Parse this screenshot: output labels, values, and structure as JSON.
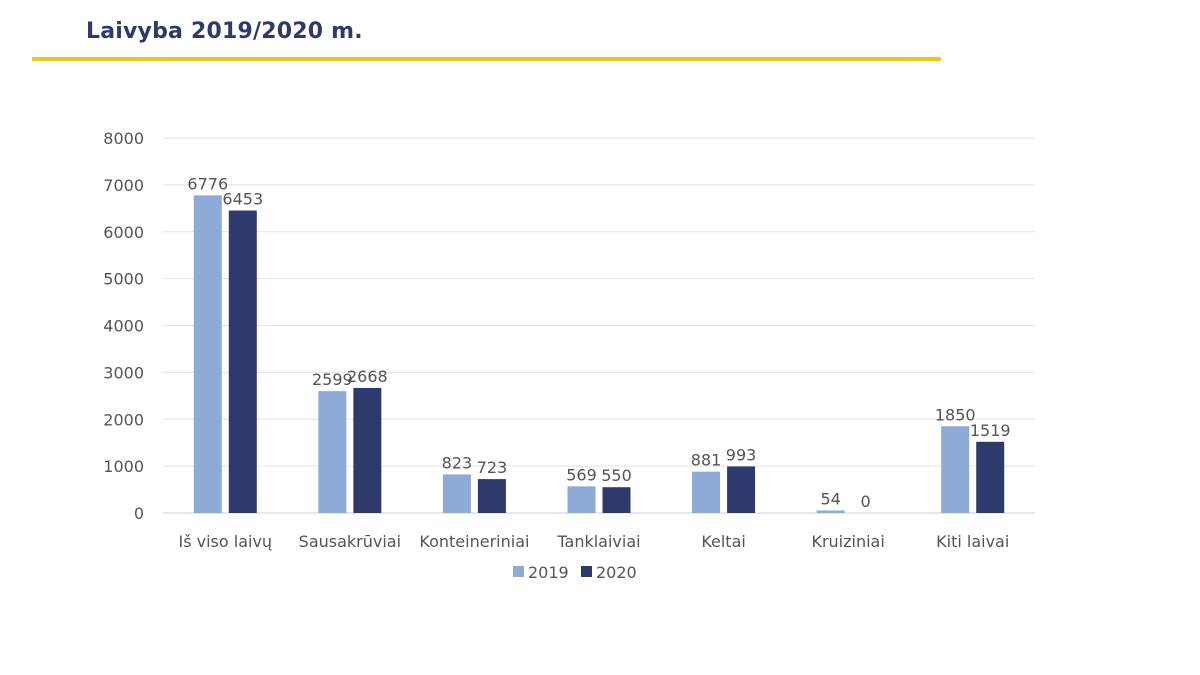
{
  "header": {
    "title": "Laivyba 2019/2020 m.",
    "accent_color": "#f5c518",
    "title_color": "#2e3a6b"
  },
  "chart_data": {
    "type": "bar",
    "categories": [
      "Iš viso laivų",
      "Sausakrūviai",
      "Konteineriniai",
      "Tanklaiviai",
      "Keltai",
      "Kruiziniai",
      "Kiti laivai"
    ],
    "series": [
      {
        "name": "2019",
        "color": "#8eaad6",
        "values": [
          6776,
          2599,
          823,
          569,
          881,
          54,
          1850
        ]
      },
      {
        "name": "2020",
        "color": "#2d3a6b",
        "values": [
          6453,
          2668,
          723,
          550,
          993,
          0,
          1519
        ]
      }
    ],
    "yticks": [
      0,
      1000,
      2000,
      3000,
      4000,
      5000,
      6000,
      7000,
      8000
    ],
    "ylim": [
      0,
      8000
    ],
    "grid": true,
    "legend": "bottom",
    "title": "",
    "xlabel": "",
    "ylabel": ""
  }
}
